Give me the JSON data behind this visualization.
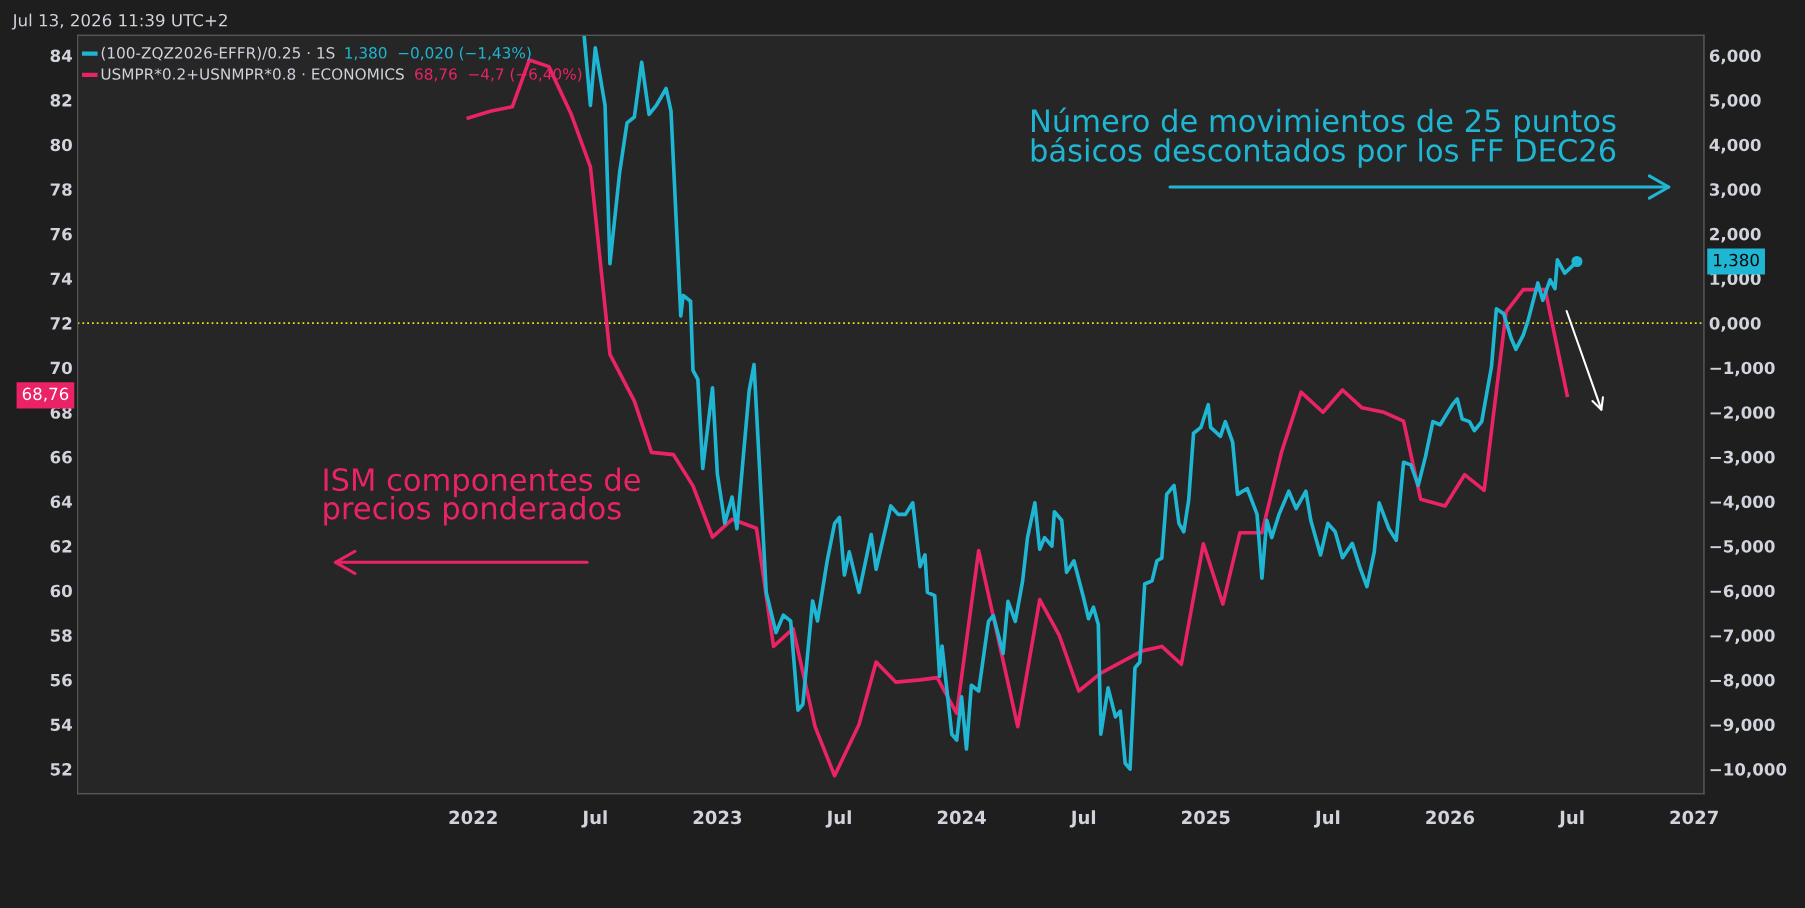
{
  "chart_data": {
    "type": "line",
    "title": "Jul 13, 2026 11:39 UTC+2",
    "xlim": [
      2020.38,
      2027.04
    ],
    "xticks": [
      {
        "value": 2022,
        "label": "2022"
      },
      {
        "value": 2022.5,
        "label": "Jul"
      },
      {
        "value": 2023,
        "label": "2023"
      },
      {
        "value": 2023.5,
        "label": "Jul"
      },
      {
        "value": 2024,
        "label": "2024"
      },
      {
        "value": 2024.5,
        "label": "Jul"
      },
      {
        "value": 2025,
        "label": "2025"
      },
      {
        "value": 2025.5,
        "label": "Jul"
      },
      {
        "value": 2026,
        "label": "2026"
      },
      {
        "value": 2026.5,
        "label": "Jul"
      },
      {
        "value": 2027,
        "label": "2027"
      }
    ],
    "ylim": [
      50.9,
      84.9
    ],
    "yticks": [
      52,
      54,
      56,
      58,
      60,
      62,
      64,
      66,
      68,
      70,
      72,
      74,
      76,
      78,
      80,
      82,
      84
    ],
    "y2lim": [
      -10.55,
      6.45
    ],
    "y2ticks": [
      {
        "value": -10,
        "label": "−10,000"
      },
      {
        "value": -9,
        "label": "−9,000"
      },
      {
        "value": -8,
        "label": "−8,000"
      },
      {
        "value": -7,
        "label": "−7,000"
      },
      {
        "value": -6,
        "label": "−6,000"
      },
      {
        "value": -5,
        "label": "−5,000"
      },
      {
        "value": -4,
        "label": "−4,000"
      },
      {
        "value": -3,
        "label": "−3,000"
      },
      {
        "value": -2,
        "label": "−2,000"
      },
      {
        "value": -1,
        "label": "−1,000"
      },
      {
        "value": 0,
        "label": "0,000"
      },
      {
        "value": 1,
        "label": "1,000"
      },
      {
        "value": 2,
        "label": "2,000"
      },
      {
        "value": 3,
        "label": "3,000"
      },
      {
        "value": 4,
        "label": "4,000"
      },
      {
        "value": 5,
        "label": "5,000"
      },
      {
        "value": 6,
        "label": "6,000"
      }
    ],
    "grid": false,
    "legend": "top left",
    "line_style": "solid",
    "ref_lines": [
      {
        "axis": "y",
        "value": 72,
        "color": "#e8e020",
        "line_style": "dotted"
      }
    ],
    "series": [
      {
        "name": "(100-ZQZ2026-EFFR)/0.25 · 1S",
        "color": "#1fb6d3",
        "axis": "y2",
        "x": [
          2022.455,
          2022.48,
          2022.5,
          2022.54,
          2022.56,
          2022.6,
          2022.63,
          2022.66,
          2022.69,
          2022.72,
          2022.75,
          2022.79,
          2022.81,
          2022.85,
          2022.86,
          2022.89,
          2022.9,
          2022.92,
          2022.94,
          2022.98,
          2023.0,
          2023.02,
          2023.03,
          2023.06,
          2023.08,
          2023.13,
          2023.15,
          2023.2,
          2023.22,
          2023.24,
          2023.27,
          2023.3,
          2023.33,
          2023.35,
          2023.39,
          2023.41,
          2023.45,
          2023.48,
          2023.5,
          2023.52,
          2023.54,
          2023.58,
          2023.63,
          2023.65,
          2023.71,
          2023.74,
          2023.77,
          2023.8,
          2023.83,
          2023.85,
          2023.86,
          2023.89,
          2023.91,
          2023.92,
          2023.96,
          2023.98,
          2024.0,
          2024.02,
          2024.04,
          2024.07,
          2024.11,
          2024.13,
          2024.17,
          2024.19,
          2024.22,
          2024.25,
          2024.27,
          2024.3,
          2024.32,
          2024.34,
          2024.37,
          2024.38,
          2024.41,
          2024.43,
          2024.46,
          2024.5,
          2024.52,
          2024.54,
          2024.56,
          2024.57,
          2024.6,
          2024.63,
          2024.65,
          2024.67,
          2024.69,
          2024.71,
          2024.73,
          2024.75,
          2024.78,
          2024.8,
          2024.82,
          2024.84,
          2024.87,
          2024.89,
          2024.91,
          2024.93,
          2024.95,
          2024.98,
          2025.01,
          2025.02,
          2025.06,
          2025.08,
          2025.11,
          2025.13,
          2025.17,
          2025.21,
          2025.23,
          2025.25,
          2025.27,
          2025.3,
          2025.34,
          2025.37,
          2025.41,
          2025.43,
          2025.47,
          2025.5,
          2025.53,
          2025.56,
          2025.6,
          2025.63,
          2025.66,
          2025.69,
          2025.71,
          2025.75,
          2025.78,
          2025.81,
          2025.84,
          2025.87,
          2025.9,
          2025.93,
          2025.96,
          2026.01,
          2026.03,
          2026.05,
          2026.08,
          2026.1,
          2026.13,
          2026.17,
          2026.19,
          2026.22,
          2026.25,
          2026.27,
          2026.3,
          2026.32,
          2026.36,
          2026.38,
          2026.41,
          2026.43,
          2026.44,
          2026.47,
          2026.49,
          2026.52
        ],
        "values": [
          6.4,
          4.88,
          6.17,
          4.88,
          1.33,
          3.39,
          4.49,
          4.62,
          5.85,
          4.68,
          4.88,
          5.26,
          4.75,
          0.16,
          0.62,
          0.49,
          -1.06,
          -1.26,
          -3.26,
          -1.45,
          -3.39,
          -4.1,
          -4.49,
          -3.9,
          -4.61,
          -1.52,
          -0.93,
          -6.04,
          -6.49,
          -6.94,
          -6.55,
          -6.68,
          -8.68,
          -8.55,
          -6.23,
          -6.68,
          -5.32,
          -4.49,
          -4.36,
          -5.65,
          -5.13,
          -6.04,
          -4.74,
          -5.52,
          -4.1,
          -4.29,
          -4.29,
          -4.03,
          -5.46,
          -5.2,
          -6.04,
          -6.11,
          -7.92,
          -7.24,
          -9.22,
          -9.35,
          -8.38,
          -9.55,
          -8.12,
          -8.25,
          -6.69,
          -6.56,
          -7.41,
          -6.24,
          -6.69,
          -5.78,
          -4.81,
          -4.03,
          -5.07,
          -4.81,
          -5.0,
          -4.23,
          -4.42,
          -5.59,
          -5.33,
          -6.17,
          -6.63,
          -6.37,
          -6.76,
          -9.22,
          -8.18,
          -8.83,
          -8.7,
          -9.87,
          -10.0,
          -7.73,
          -7.6,
          -5.85,
          -5.78,
          -5.33,
          -5.27,
          -3.84,
          -3.64,
          -4.49,
          -4.68,
          -3.97,
          -2.47,
          -2.34,
          -1.83,
          -2.34,
          -2.54,
          -2.21,
          -2.67,
          -3.84,
          -3.71,
          -4.29,
          -5.72,
          -4.42,
          -4.81,
          -4.29,
          -3.77,
          -4.16,
          -3.77,
          -4.42,
          -5.2,
          -4.49,
          -4.68,
          -5.26,
          -4.94,
          -5.46,
          -5.91,
          -5.13,
          -4.03,
          -4.61,
          -4.87,
          -3.12,
          -3.18,
          -3.64,
          -2.99,
          -2.21,
          -2.28,
          -1.83,
          -1.7,
          -2.15,
          -2.21,
          -2.41,
          -2.21,
          -0.98,
          0.32,
          0.21,
          -0.33,
          -0.59,
          -0.27,
          0.06,
          0.9,
          0.51,
          0.97,
          0.77,
          1.42,
          1.12,
          1.22,
          1.38
        ]
      },
      {
        "name": "USMPR*0.2+USNMPR*0.8 · ECONOMICS",
        "color": "#ea2367",
        "axis": "y",
        "x": [
          2021.98,
          2022.07,
          2022.16,
          2022.23,
          2022.31,
          2022.4,
          2022.48,
          2022.56,
          2022.66,
          2022.73,
          2022.82,
          2022.9,
          2022.98,
          2023.06,
          2023.16,
          2023.23,
          2023.31,
          2023.4,
          2023.48,
          2023.58,
          2023.65,
          2023.73,
          2023.83,
          2023.9,
          2023.98,
          2024.07,
          2024.23,
          2024.32,
          2024.4,
          2024.48,
          2024.57,
          2024.74,
          2024.82,
          2024.9,
          2024.99,
          2025.07,
          2025.14,
          2025.23,
          2025.31,
          2025.39,
          2025.48,
          2025.56,
          2025.64,
          2025.73,
          2025.81,
          2025.88,
          2025.98,
          2026.06,
          2026.14,
          2026.23,
          2026.3,
          2026.39,
          2026.48
        ],
        "values": [
          81.2,
          81.5,
          81.7,
          83.8,
          83.5,
          81.4,
          79.0,
          70.6,
          68.5,
          66.2,
          66.1,
          64.7,
          62.4,
          63.2,
          62.8,
          57.5,
          58.3,
          53.9,
          51.7,
          54.0,
          56.8,
          55.9,
          56.0,
          56.1,
          54.5,
          61.8,
          53.9,
          59.6,
          58.0,
          55.5,
          56.3,
          57.3,
          57.5,
          56.7,
          62.1,
          59.4,
          62.6,
          62.6,
          66.2,
          68.9,
          68.0,
          69.0,
          68.2,
          68.0,
          67.6,
          64.1,
          63.8,
          65.2,
          64.5,
          72.5,
          73.5,
          73.5,
          68.76
        ]
      }
    ],
    "annotations": [
      "Número de movimientos de 25 puntos\nbásicos descontados por los FF DEC26",
      "ISM componentes de\nprecios ponderados",
      "1,380",
      "68,76",
      "1,380  −0,020 (−1,43%)",
      "68,76  −4,7 (−6,40%)"
    ]
  }
}
